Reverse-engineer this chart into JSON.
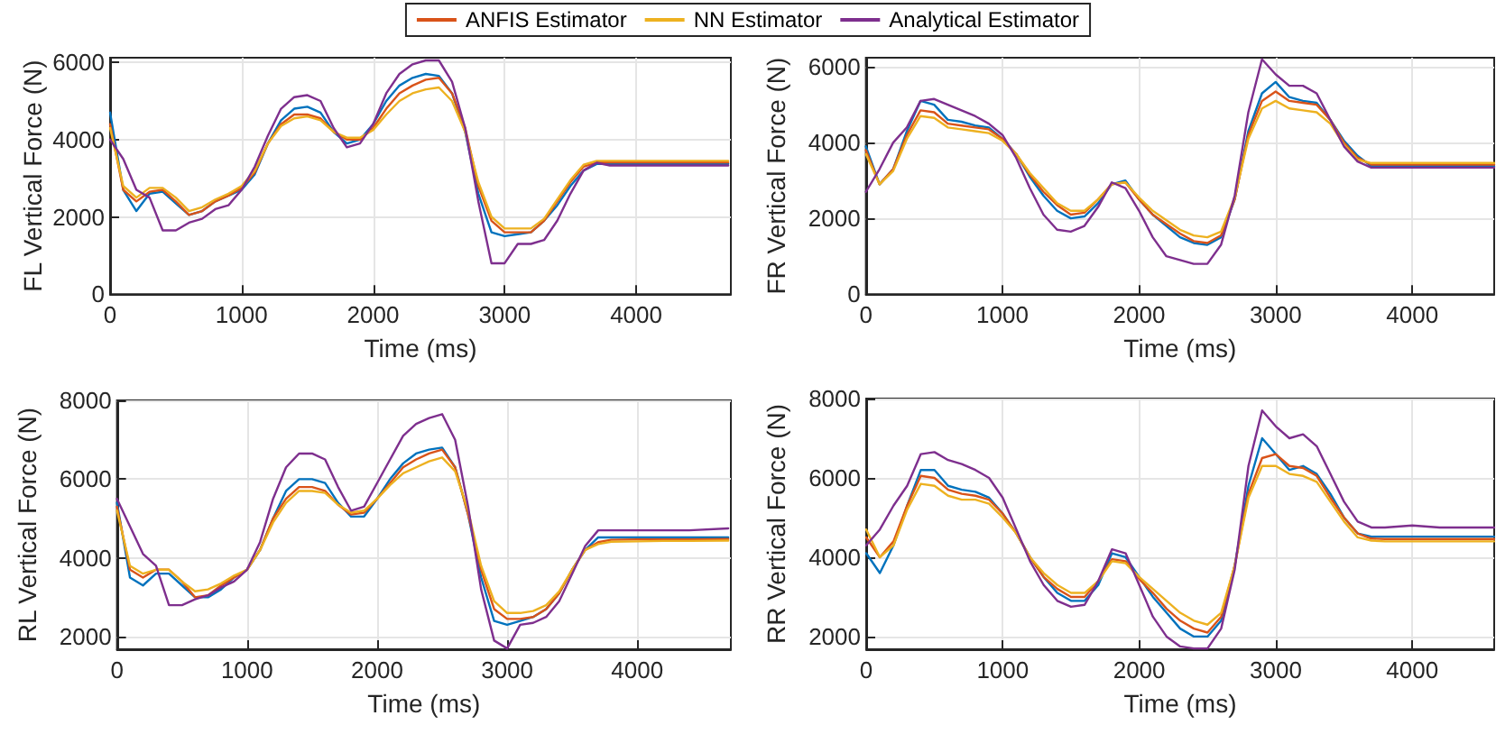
{
  "chart_data": [
    {
      "type": "line",
      "xlabel": "Time (ms)",
      "ylabel": "FL Vertical Force (N)",
      "legend": "top",
      "grid": true,
      "marker": "none",
      "line_style": "solid",
      "xlim": [
        0,
        4720
      ],
      "xticks": [
        0,
        1000,
        2000,
        3000,
        4000
      ],
      "ylim": [
        0,
        6120
      ],
      "yticks": [
        0,
        2000,
        4000,
        6000
      ],
      "x": [
        0,
        100,
        200,
        300,
        400,
        500,
        600,
        700,
        800,
        900,
        1000,
        1100,
        1200,
        1300,
        1400,
        1500,
        1600,
        1700,
        1800,
        1900,
        2000,
        2100,
        2200,
        2300,
        2400,
        2500,
        2600,
        2700,
        2800,
        2900,
        3000,
        3100,
        3200,
        3300,
        3400,
        3500,
        3600,
        3700,
        3800,
        4000,
        4200,
        4400,
        4700
      ],
      "series": [
        {
          "color": "#0072bd",
          "values": [
            4700,
            2700,
            2150,
            2600,
            2650,
            2350,
            2050,
            2150,
            2400,
            2550,
            2700,
            3100,
            3900,
            4500,
            4800,
            4850,
            4700,
            4200,
            3900,
            4000,
            4400,
            5000,
            5400,
            5600,
            5700,
            5650,
            5200,
            4200,
            2600,
            1600,
            1500,
            1550,
            1600,
            1900,
            2300,
            2800,
            3200,
            3370,
            3370,
            3370,
            3370,
            3370,
            3370
          ]
        },
        {
          "name": "ANFIS Estimator",
          "color": "#d95319",
          "values": [
            4400,
            2700,
            2400,
            2650,
            2700,
            2400,
            2050,
            2150,
            2400,
            2550,
            2750,
            3150,
            3900,
            4400,
            4650,
            4650,
            4550,
            4200,
            4000,
            4000,
            4300,
            4800,
            5200,
            5400,
            5550,
            5600,
            5200,
            4300,
            2800,
            1900,
            1600,
            1600,
            1600,
            1900,
            2400,
            2900,
            3300,
            3410,
            3410,
            3410,
            3410,
            3410,
            3410
          ]
        },
        {
          "name": "NN Estimator",
          "color": "#edb120",
          "values": [
            4300,
            2800,
            2500,
            2750,
            2750,
            2500,
            2150,
            2250,
            2450,
            2600,
            2800,
            3200,
            3900,
            4350,
            4550,
            4600,
            4500,
            4200,
            4050,
            4050,
            4250,
            4650,
            5000,
            5200,
            5300,
            5350,
            5000,
            4200,
            2900,
            2000,
            1700,
            1700,
            1700,
            1950,
            2450,
            2950,
            3350,
            3450,
            3450,
            3450,
            3450,
            3450,
            3450
          ]
        },
        {
          "name": "Analytical Estimator",
          "color": "#7e2f8e",
          "values": [
            4000,
            3500,
            2700,
            2500,
            1650,
            1650,
            1850,
            1950,
            2200,
            2300,
            2700,
            3300,
            4100,
            4800,
            5100,
            5150,
            5000,
            4300,
            3800,
            3900,
            4400,
            5200,
            5700,
            5950,
            6050,
            6050,
            5500,
            4300,
            2400,
            800,
            800,
            1300,
            1300,
            1400,
            1900,
            2600,
            3200,
            3400,
            3330,
            3330,
            3330,
            3330,
            3330
          ]
        }
      ]
    },
    {
      "type": "line",
      "xlabel": "Time (ms)",
      "ylabel": "FR Vertical Force (N)",
      "grid": true,
      "marker": "none",
      "line_style": "solid",
      "xlim": [
        0,
        4600
      ],
      "xticks": [
        0,
        1000,
        2000,
        3000,
        4000
      ],
      "ylim": [
        0,
        6240
      ],
      "yticks": [
        0,
        2000,
        4000,
        6000
      ],
      "x": [
        0,
        100,
        200,
        300,
        400,
        500,
        600,
        700,
        800,
        900,
        1000,
        1100,
        1200,
        1300,
        1400,
        1500,
        1600,
        1700,
        1800,
        1900,
        2000,
        2100,
        2200,
        2300,
        2400,
        2500,
        2600,
        2700,
        2800,
        2900,
        3000,
        3100,
        3200,
        3300,
        3400,
        3500,
        3600,
        3700,
        3800,
        4000,
        4200,
        4400,
        4600
      ],
      "series": [
        {
          "color": "#0072bd",
          "values": [
            3900,
            2900,
            3300,
            4300,
            5100,
            5000,
            4600,
            4550,
            4450,
            4400,
            4100,
            3700,
            3100,
            2600,
            2200,
            2000,
            2050,
            2400,
            2900,
            3000,
            2500,
            2100,
            1800,
            1500,
            1350,
            1300,
            1500,
            2500,
            4300,
            5300,
            5600,
            5200,
            5100,
            5050,
            4600,
            4050,
            3650,
            3380,
            3380,
            3380,
            3380,
            3380,
            3380
          ]
        },
        {
          "color": "#d95319",
          "values": [
            3800,
            2900,
            3300,
            4200,
            4850,
            4800,
            4500,
            4450,
            4400,
            4350,
            4100,
            3700,
            3150,
            2700,
            2350,
            2100,
            2150,
            2500,
            2900,
            2950,
            2500,
            2100,
            1850,
            1600,
            1400,
            1350,
            1550,
            2500,
            4200,
            5100,
            5350,
            5100,
            5050,
            5000,
            4600,
            4000,
            3600,
            3420,
            3420,
            3420,
            3420,
            3420,
            3420
          ]
        },
        {
          "color": "#edb120",
          "values": [
            3700,
            2900,
            3250,
            4100,
            4700,
            4650,
            4400,
            4350,
            4300,
            4250,
            4050,
            3700,
            3200,
            2800,
            2400,
            2200,
            2200,
            2500,
            2900,
            2950,
            2550,
            2200,
            1950,
            1700,
            1550,
            1500,
            1650,
            2550,
            4100,
            4900,
            5100,
            4900,
            4850,
            4800,
            4500,
            3950,
            3550,
            3460,
            3460,
            3460,
            3460,
            3460,
            3460
          ]
        },
        {
          "color": "#7e2f8e",
          "values": [
            2700,
            3300,
            4000,
            4400,
            5100,
            5150,
            5000,
            4850,
            4700,
            4500,
            4200,
            3600,
            2800,
            2100,
            1700,
            1650,
            1800,
            2300,
            2950,
            2800,
            2200,
            1500,
            1000,
            900,
            800,
            800,
            1300,
            2600,
            4800,
            6200,
            5800,
            5500,
            5500,
            5300,
            4600,
            3900,
            3500,
            3340,
            3340,
            3340,
            3340,
            3340,
            3340
          ]
        }
      ]
    },
    {
      "type": "line",
      "xlabel": "Time (ms)",
      "ylabel": "RL Vertical Force (N)",
      "grid": true,
      "marker": "none",
      "line_style": "solid",
      "xlim": [
        0,
        4720
      ],
      "xticks": [
        0,
        1000,
        2000,
        3000,
        4000
      ],
      "ylim": [
        1680,
        8000
      ],
      "yticks": [
        2000,
        4000,
        6000,
        8000
      ],
      "x": [
        0,
        100,
        200,
        300,
        400,
        500,
        600,
        700,
        800,
        900,
        1000,
        1100,
        1200,
        1300,
        1400,
        1500,
        1600,
        1700,
        1800,
        1900,
        2000,
        2100,
        2200,
        2300,
        2400,
        2500,
        2600,
        2700,
        2800,
        2900,
        3000,
        3100,
        3200,
        3300,
        3400,
        3500,
        3600,
        3700,
        3800,
        4000,
        4200,
        4400,
        4700
      ],
      "series": [
        {
          "color": "#0072bd",
          "values": [
            5400,
            3500,
            3300,
            3600,
            3600,
            3300,
            3000,
            3000,
            3200,
            3500,
            3700,
            4200,
            5000,
            5700,
            6000,
            6000,
            5900,
            5400,
            5050,
            5050,
            5500,
            6000,
            6400,
            6650,
            6750,
            6800,
            6300,
            5100,
            3500,
            2400,
            2300,
            2400,
            2500,
            2700,
            3100,
            3700,
            4200,
            4520,
            4520,
            4520,
            4520,
            4520,
            4520
          ]
        },
        {
          "color": "#d95319",
          "values": [
            5300,
            3700,
            3500,
            3700,
            3700,
            3400,
            3000,
            3050,
            3300,
            3500,
            3700,
            4200,
            5000,
            5500,
            5800,
            5800,
            5700,
            5350,
            5100,
            5150,
            5500,
            5900,
            6300,
            6500,
            6650,
            6750,
            6300,
            5100,
            3700,
            2700,
            2450,
            2450,
            2500,
            2700,
            3100,
            3700,
            4200,
            4400,
            4460,
            4470,
            4470,
            4470,
            4480
          ]
        },
        {
          "color": "#edb120",
          "values": [
            5200,
            3800,
            3600,
            3700,
            3700,
            3400,
            3150,
            3200,
            3350,
            3550,
            3700,
            4200,
            4900,
            5400,
            5700,
            5700,
            5650,
            5350,
            5150,
            5200,
            5500,
            5850,
            6150,
            6300,
            6450,
            6550,
            6200,
            5200,
            3800,
            2900,
            2600,
            2600,
            2650,
            2800,
            3150,
            3700,
            4200,
            4350,
            4410,
            4420,
            4430,
            4430,
            4440
          ]
        },
        {
          "color": "#7e2f8e",
          "values": [
            5500,
            4800,
            4100,
            3800,
            2800,
            2800,
            2950,
            3050,
            3250,
            3400,
            3700,
            4400,
            5500,
            6300,
            6650,
            6650,
            6500,
            5800,
            5200,
            5300,
            5900,
            6500,
            7100,
            7400,
            7550,
            7650,
            7000,
            5300,
            3200,
            1900,
            1700,
            2300,
            2350,
            2500,
            2900,
            3600,
            4300,
            4700,
            4700,
            4700,
            4700,
            4700,
            4750
          ]
        }
      ]
    },
    {
      "type": "line",
      "xlabel": "Time (ms)",
      "ylabel": "RR Vertical Force (N)",
      "grid": true,
      "marker": "none",
      "line_style": "solid",
      "xlim": [
        0,
        4600
      ],
      "xticks": [
        0,
        1000,
        2000,
        3000,
        4000
      ],
      "ylim": [
        1680,
        8000
      ],
      "yticks": [
        2000,
        4000,
        6000,
        8000
      ],
      "x": [
        0,
        100,
        200,
        300,
        400,
        500,
        600,
        700,
        800,
        900,
        1000,
        1100,
        1200,
        1300,
        1400,
        1500,
        1600,
        1700,
        1800,
        1900,
        2000,
        2100,
        2200,
        2300,
        2400,
        2500,
        2600,
        2700,
        2800,
        2900,
        3000,
        3100,
        3200,
        3300,
        3400,
        3500,
        3600,
        3700,
        3800,
        4000,
        4200,
        4400,
        4600
      ],
      "series": [
        {
          "color": "#0072bd",
          "values": [
            4100,
            3600,
            4300,
            5300,
            6200,
            6200,
            5800,
            5700,
            5650,
            5500,
            5100,
            4600,
            4000,
            3500,
            3100,
            2900,
            2900,
            3300,
            4100,
            4000,
            3500,
            3000,
            2600,
            2200,
            2000,
            2000,
            2400,
            3800,
            5800,
            7000,
            6600,
            6200,
            6300,
            6100,
            5600,
            5000,
            4600,
            4520,
            4520,
            4520,
            4520,
            4520,
            4520
          ]
        },
        {
          "color": "#d95319",
          "values": [
            4500,
            4000,
            4400,
            5300,
            6050,
            6000,
            5700,
            5600,
            5550,
            5450,
            5100,
            4600,
            4000,
            3500,
            3200,
            3000,
            3000,
            3400,
            3950,
            3900,
            3450,
            3100,
            2700,
            2400,
            2200,
            2100,
            2500,
            3800,
            5600,
            6500,
            6600,
            6300,
            6250,
            6050,
            5500,
            5000,
            4600,
            4470,
            4460,
            4460,
            4460,
            4460,
            4460
          ]
        },
        {
          "color": "#edb120",
          "values": [
            4700,
            4000,
            4300,
            5200,
            5850,
            5800,
            5550,
            5450,
            5450,
            5350,
            5000,
            4600,
            4000,
            3600,
            3300,
            3100,
            3100,
            3400,
            3900,
            3850,
            3500,
            3200,
            2900,
            2600,
            2400,
            2300,
            2600,
            3800,
            5500,
            6300,
            6300,
            6100,
            6050,
            5900,
            5400,
            4900,
            4500,
            4420,
            4400,
            4400,
            4400,
            4400,
            4400
          ]
        },
        {
          "color": "#7e2f8e",
          "values": [
            4300,
            4700,
            5300,
            5800,
            6600,
            6650,
            6450,
            6350,
            6200,
            6000,
            5500,
            4700,
            3900,
            3300,
            2900,
            2750,
            2800,
            3400,
            4200,
            4100,
            3300,
            2500,
            2000,
            1750,
            1700,
            1700,
            2200,
            3700,
            6300,
            7700,
            7300,
            7000,
            7100,
            6800,
            6100,
            5400,
            4900,
            4750,
            4750,
            4800,
            4750,
            4750,
            4750
          ]
        }
      ]
    }
  ]
}
